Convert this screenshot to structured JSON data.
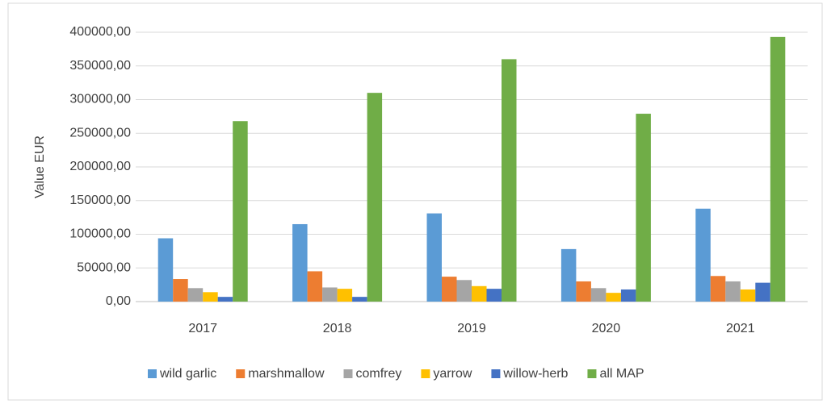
{
  "chart_data": {
    "type": "bar",
    "y_label": "Value EUR",
    "categories": [
      "2017",
      "2018",
      "2019",
      "2020",
      "2021"
    ],
    "series": [
      {
        "name": "wild garlic",
        "color": "#5b9bd5",
        "values": [
          94000,
          115000,
          131000,
          78000,
          138000
        ]
      },
      {
        "name": "marshmallow",
        "color": "#ed7d31",
        "values": [
          33500,
          45000,
          37000,
          30000,
          38000
        ]
      },
      {
        "name": "comfrey",
        "color": "#a5a5a5",
        "values": [
          20000,
          21000,
          32000,
          20000,
          30000
        ]
      },
      {
        "name": "yarrow",
        "color": "#ffc000",
        "values": [
          14000,
          19000,
          23000,
          13000,
          18000
        ]
      },
      {
        "name": "willow-herb",
        "color": "#4472c4",
        "values": [
          7000,
          7000,
          19000,
          18000,
          28000
        ]
      },
      {
        "name": "all MAP",
        "color": "#70ad47",
        "values": [
          268000,
          310000,
          360000,
          279000,
          393000
        ]
      }
    ],
    "ylim": [
      0,
      400000
    ],
    "yticks": [
      {
        "value": 0,
        "label": "0,00"
      },
      {
        "value": 50000,
        "label": "50000,00"
      },
      {
        "value": 100000,
        "label": "100000,00"
      },
      {
        "value": 150000,
        "label": "150000,00"
      },
      {
        "value": 200000,
        "label": "200000,00"
      },
      {
        "value": 250000,
        "label": "250000,00"
      },
      {
        "value": 300000,
        "label": "300000,00"
      },
      {
        "value": 350000,
        "label": "350000,00"
      },
      {
        "value": 400000,
        "label": "400000,00"
      }
    ],
    "grid": true,
    "legend": "bottom"
  }
}
